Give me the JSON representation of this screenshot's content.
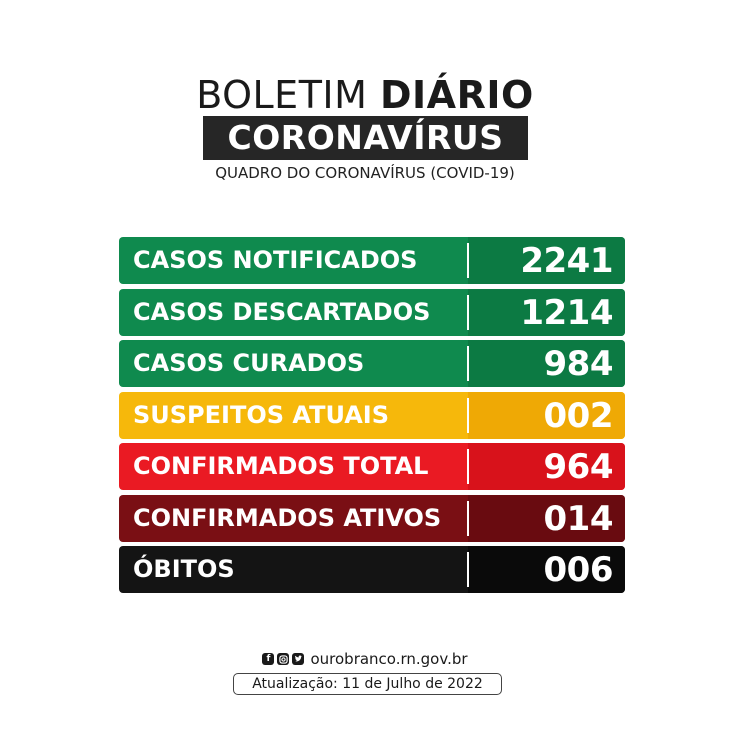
{
  "header": {
    "title_light": "BOLETIM",
    "title_bold": "DIÁRIO",
    "banner": "CORONAVÍRUS",
    "subtitle": "QUADRO DO CORONAVÍRUS (COVID-19)"
  },
  "rows": [
    {
      "label": "CASOS NOTIFICADOS",
      "value": "2241",
      "color_left": "#0f8a4e",
      "color_right": "#0c7a43"
    },
    {
      "label": "CASOS DESCARTADOS",
      "value": "1214",
      "color_left": "#0f8a4e",
      "color_right": "#0c7a43"
    },
    {
      "label": "CASOS CURADOS",
      "value": "984",
      "color_left": "#0f8a4e",
      "color_right": "#0c7a43"
    },
    {
      "label": "SUSPEITOS ATUAIS",
      "value": "002",
      "color_left": "#f6b80b",
      "color_right": "#efa905"
    },
    {
      "label": "CONFIRMADOS TOTAL",
      "value": "964",
      "color_left": "#ea1a23",
      "color_right": "#d8121b"
    },
    {
      "label": "CONFIRMADOS ATIVOS",
      "value": "014",
      "color_left": "#7a0f14",
      "color_right": "#690b10"
    },
    {
      "label": "ÓBITOS",
      "value": "006",
      "color_left": "#141414",
      "color_right": "#0a0a0a"
    }
  ],
  "footer": {
    "social_icons": [
      "facebook-icon",
      "instagram-icon",
      "twitter-icon"
    ],
    "website": "ourobranco.rn.gov.br",
    "update": "Atualização: 11 de Julho de 2022"
  }
}
